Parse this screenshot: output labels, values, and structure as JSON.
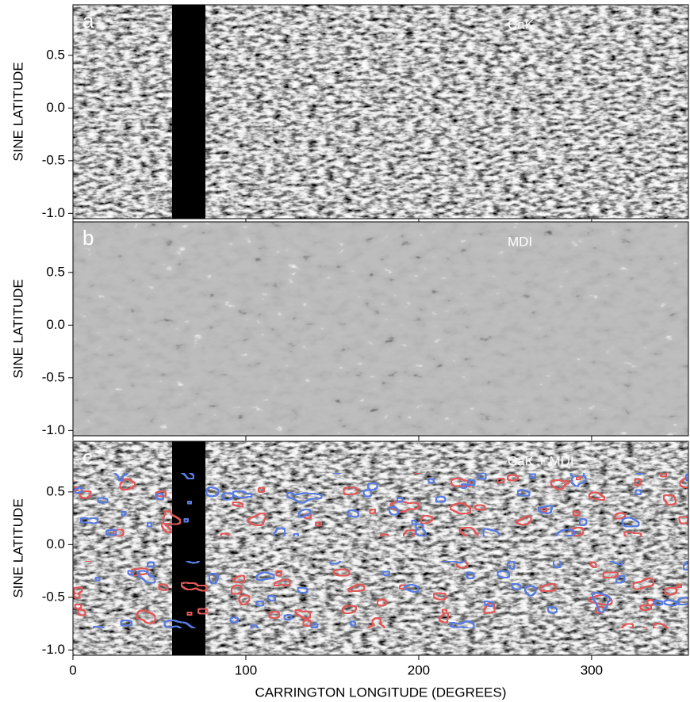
{
  "chart_data": [
    {
      "type": "image",
      "panel": "a",
      "title": "CaK",
      "ylabel": "SINE LATITUDE",
      "xlim": [
        0,
        356
      ],
      "xticks": [
        0,
        100,
        200,
        300
      ],
      "ylim": [
        -1.05,
        0.98
      ],
      "yticks": [
        0.5,
        {
          "value": 0,
          "label": "0.0"
        },
        -0.5,
        {
          "value": -1,
          "label": "-1.0"
        }
      ]
    },
    {
      "type": "image",
      "panel": "b",
      "title": "MDI",
      "ylabel": "SINE LATITUDE",
      "xlim": [
        0,
        356
      ],
      "xticks": [
        0,
        100,
        200,
        300
      ],
      "ylim": [
        -1.05,
        0.98
      ],
      "yticks": [
        0.5,
        {
          "value": 0,
          "label": "0.0"
        },
        -0.5,
        {
          "value": -1,
          "label": "-1.0"
        }
      ]
    },
    {
      "type": "image",
      "panel": "c",
      "title": "CaK + MDI",
      "ylabel": "SINE LATITUDE",
      "xlabel": "CARRINGTON LONGITUDE (DEGREES)",
      "xlim": [
        0,
        356
      ],
      "xticks": [
        0,
        100,
        200,
        300
      ],
      "ylim": [
        -1.05,
        0.98
      ],
      "yticks": [
        0.5,
        {
          "value": 0,
          "label": "0.0"
        },
        -0.5,
        {
          "value": -1,
          "label": "-1.0"
        }
      ]
    }
  ]
}
